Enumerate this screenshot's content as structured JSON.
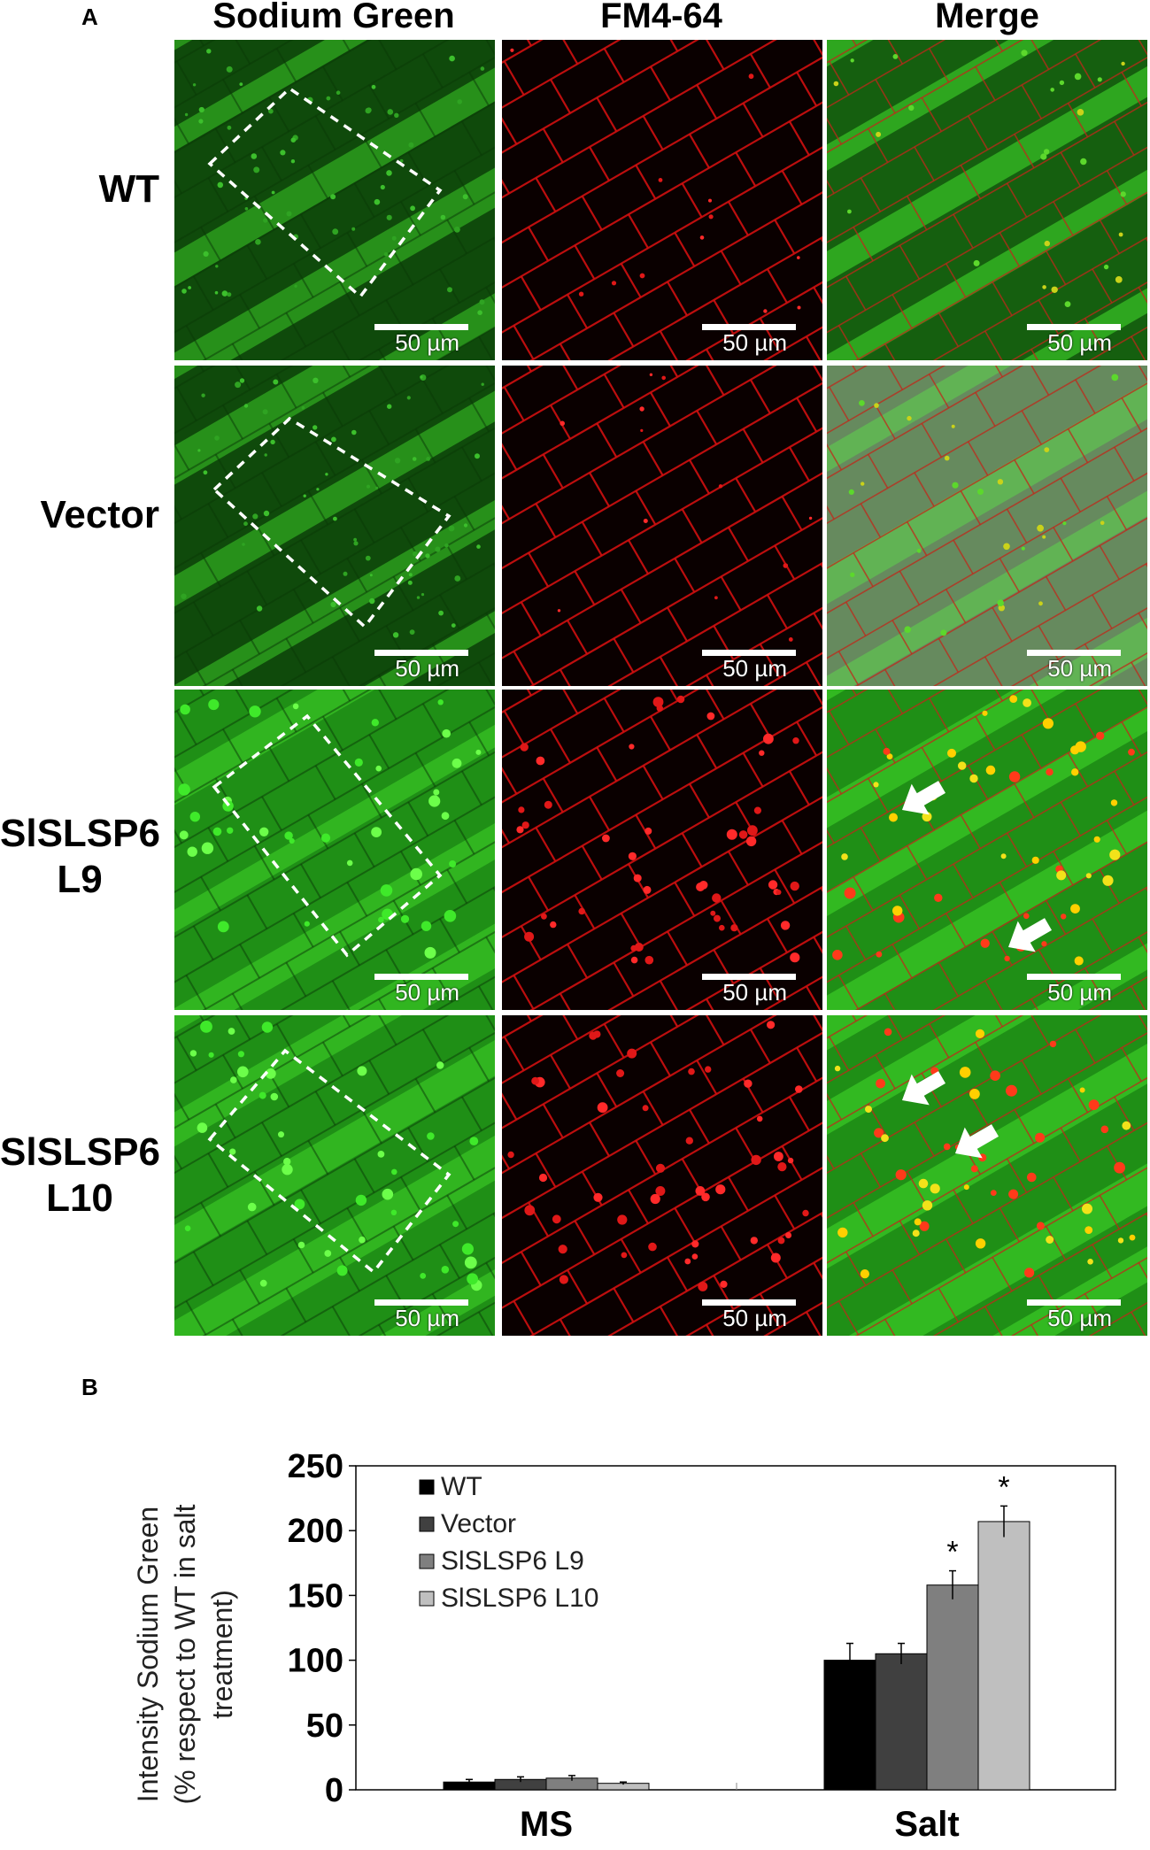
{
  "panel_a": {
    "letter": "A",
    "columns": [
      "Sodium Green",
      "FM4-64",
      "Merge"
    ],
    "rows": [
      {
        "label_lines": [
          "WT"
        ]
      },
      {
        "label_lines": [
          "Vector"
        ]
      },
      {
        "label_lines": [
          "SlSLSP6",
          "L9"
        ]
      },
      {
        "label_lines": [
          "SlSLSP6",
          "L10"
        ]
      }
    ],
    "scale_label": "50 µm"
  },
  "panel_b": {
    "letter": "B"
  },
  "colors": {
    "green_bg": "#1a7a12",
    "green_bright": "#3fd62a",
    "red_membrane": "#d01010",
    "bar_wt": "#000000",
    "bar_vector": "#404040",
    "bar_l9": "#7f7f7f",
    "bar_l10": "#bfbfbf"
  },
  "chart_data": {
    "type": "bar",
    "categories": [
      "MS",
      "Salt"
    ],
    "series": [
      {
        "name": "WT",
        "values": [
          6,
          100
        ],
        "errors": [
          2,
          13
        ],
        "color": "#000000"
      },
      {
        "name": "Vector",
        "values": [
          8,
          105
        ],
        "errors": [
          2,
          8
        ],
        "color": "#404040"
      },
      {
        "name": "SlSLSP6 L9",
        "values": [
          9,
          158
        ],
        "errors": [
          2,
          11
        ],
        "color": "#7f7f7f"
      },
      {
        "name": "SlSLSP6 L10",
        "values": [
          5,
          207
        ],
        "errors": [
          1,
          12
        ],
        "color": "#bfbfbf"
      }
    ],
    "significance": [
      {
        "category": "Salt",
        "series": "SlSLSP6 L9",
        "mark": "*"
      },
      {
        "category": "Salt",
        "series": "SlSLSP6 L10",
        "mark": "*"
      }
    ],
    "ylabel_lines": [
      "Intensity Sodium Green",
      "(% respect to WT in salt",
      "treatment)"
    ],
    "xlabel": "",
    "ylim": [
      0,
      250
    ],
    "yticks": [
      0,
      50,
      100,
      150,
      200,
      250
    ],
    "grid": false,
    "legend_position": "top-left"
  }
}
